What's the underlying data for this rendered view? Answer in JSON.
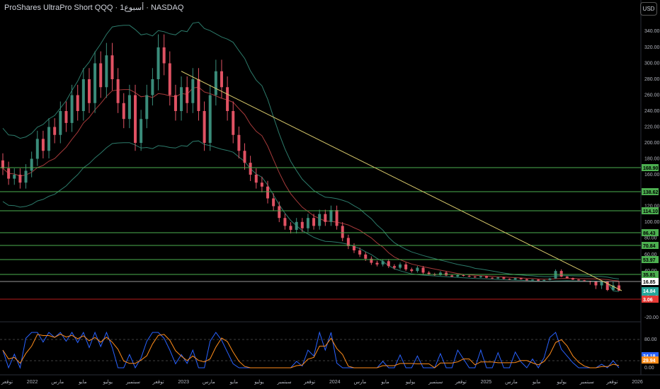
{
  "header": {
    "title": "ProShares UltraPro Short QQQ · 1أسبوع · NASDAQ",
    "currency_button": "USD"
  },
  "colors": {
    "up": "#3a8c7a",
    "down": "#e05263",
    "hline": "#4caf50",
    "trend": "#d6c76a",
    "bb": "#2c7a6a",
    "basis": "#a63a3a",
    "k_line": "#2962ff",
    "d_line": "#ff8c1a",
    "support_red": "#b71c1c"
  },
  "chart_data": [
    {
      "type": "candlestick",
      "title": "ProShares UltraPro Short QQQ · 1أسبوع · NASDAQ",
      "x_ticks": [
        "توقعر",
        "2022",
        "مارس",
        "مايو",
        "يوليو",
        "سبتمبر",
        "توقعر",
        "2023",
        "مارس",
        "مايو",
        "يوليو",
        "سبتمبر",
        "توقعر",
        "2024",
        "مارس",
        "مايو",
        "يوليو",
        "سبتمبر",
        "توقعر",
        "2025",
        "مارس",
        "مايو",
        "يوليو",
        "سبتمبر",
        "توقعر",
        "2026"
      ],
      "y_ticks": [
        "340.00",
        "320.00",
        "300.00",
        "280.00",
        "260.00",
        "240.00",
        "220.00",
        "200.00",
        "180.00",
        "160.00",
        "120.00",
        "100.00",
        "80.00",
        "60.00",
        "40.00",
        "20.00",
        "-20.00"
      ],
      "horizontal_levels": [
        168.9,
        138.62,
        114.1,
        86.43,
        70.84,
        53.97,
        35.81
      ],
      "price_tags": [
        {
          "text": "168.90",
          "kind": "level"
        },
        {
          "text": "138.62",
          "kind": "level"
        },
        {
          "text": "114.10",
          "kind": "level"
        },
        {
          "text": "86.43",
          "kind": "level"
        },
        {
          "text": "70.84",
          "kind": "level"
        },
        {
          "text": "53.97",
          "kind": "level"
        },
        {
          "text": "35.81",
          "kind": "level"
        },
        {
          "text": "16.85",
          "kind": "white"
        },
        {
          "text": "14.84",
          "kind": "current"
        },
        {
          "text": "1d 13h",
          "kind": "countdown"
        },
        {
          "text": "3.06",
          "kind": "red"
        }
      ],
      "trendline": {
        "from_price": 290,
        "to_price": 0
      },
      "support_line": 3.06,
      "candles_approx": [
        [
          178,
          168
        ],
        [
          168,
          155
        ],
        [
          155,
          160
        ],
        [
          160,
          150
        ],
        [
          150,
          165
        ],
        [
          165,
          180
        ],
        [
          180,
          205
        ],
        [
          205,
          190
        ],
        [
          190,
          220
        ],
        [
          220,
          210
        ],
        [
          210,
          240
        ],
        [
          240,
          225
        ],
        [
          225,
          260
        ],
        [
          260,
          240
        ],
        [
          240,
          280
        ],
        [
          280,
          250
        ],
        [
          250,
          300
        ],
        [
          300,
          270
        ],
        [
          270,
          310
        ],
        [
          310,
          280
        ],
        [
          280,
          250
        ],
        [
          250,
          230
        ],
        [
          230,
          260
        ],
        [
          260,
          200
        ],
        [
          200,
          230
        ],
        [
          230,
          260
        ],
        [
          260,
          280
        ],
        [
          280,
          320
        ],
        [
          320,
          300
        ],
        [
          300,
          260
        ],
        [
          260,
          240
        ],
        [
          240,
          270
        ],
        [
          270,
          250
        ],
        [
          250,
          280
        ],
        [
          280,
          240
        ],
        [
          240,
          200
        ],
        [
          200,
          260
        ],
        [
          260,
          290
        ],
        [
          290,
          270
        ],
        [
          270,
          240
        ],
        [
          240,
          210
        ],
        [
          210,
          190
        ],
        [
          190,
          175
        ],
        [
          175,
          160
        ],
        [
          160,
          150
        ],
        [
          150,
          145
        ],
        [
          145,
          130
        ],
        [
          130,
          120
        ],
        [
          120,
          105
        ],
        [
          105,
          95
        ],
        [
          95,
          90
        ],
        [
          90,
          100
        ],
        [
          100,
          92
        ],
        [
          92,
          105
        ],
        [
          105,
          95
        ],
        [
          95,
          110
        ],
        [
          110,
          100
        ],
        [
          100,
          115
        ],
        [
          115,
          95
        ],
        [
          95,
          80
        ],
        [
          80,
          70
        ],
        [
          70,
          65
        ],
        [
          65,
          60
        ],
        [
          60,
          55
        ],
        [
          55,
          50
        ],
        [
          50,
          48
        ],
        [
          48,
          52
        ],
        [
          52,
          46
        ],
        [
          46,
          44
        ],
        [
          44,
          48
        ],
        [
          48,
          42
        ],
        [
          42,
          40
        ],
        [
          40,
          44
        ],
        [
          44,
          38
        ],
        [
          38,
          36
        ],
        [
          36,
          34
        ],
        [
          34,
          38
        ],
        [
          38,
          33
        ],
        [
          33,
          30
        ],
        [
          30,
          34
        ],
        [
          34,
          32
        ],
        [
          32,
          30
        ],
        [
          30,
          28
        ],
        [
          28,
          31
        ],
        [
          31,
          27
        ],
        [
          27,
          25
        ],
        [
          25,
          28
        ],
        [
          28,
          24
        ],
        [
          24,
          22
        ],
        [
          22,
          26
        ],
        [
          26,
          23
        ],
        [
          23,
          20
        ],
        [
          20,
          22
        ],
        [
          22,
          19
        ],
        [
          19,
          21
        ],
        [
          21,
          25
        ],
        [
          25,
          40
        ],
        [
          40,
          30
        ],
        [
          30,
          26
        ],
        [
          26,
          22
        ],
        [
          22,
          20
        ],
        [
          20,
          18
        ],
        [
          18,
          17
        ],
        [
          17,
          16
        ],
        [
          16,
          17
        ],
        [
          17,
          15
        ],
        [
          15,
          16
        ],
        [
          16,
          14.84
        ]
      ]
    },
    {
      "type": "line",
      "name": "stochastic RSI",
      "y_ticks": [
        "80.00",
        "20.00",
        "0.00"
      ],
      "last_values": {
        "k": "34.18",
        "d": "29.94"
      }
    }
  ]
}
